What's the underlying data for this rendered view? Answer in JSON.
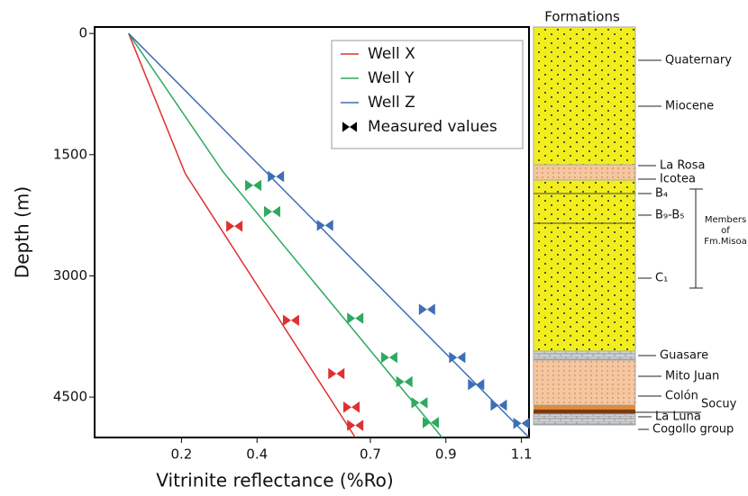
{
  "chart_data": {
    "type": "line",
    "x_label": "Vitrinite reflectance (%Ro)",
    "y_label": "Depth (m)",
    "xlim": [
      -0.03,
      1.12
    ],
    "xticks": [
      0.2,
      0.4,
      0.7,
      0.9,
      1.1
    ],
    "ylim": [
      -80,
      5000
    ],
    "yticks": [
      0,
      1500,
      3000,
      4500
    ],
    "y_inverted": true,
    "legend_position": "upper right",
    "measured_label": "Measured values",
    "measured_color": "#000000",
    "series": [
      {
        "name": "Well X",
        "color": "#e03030",
        "x": [
          0.06,
          0.21,
          0.66
        ],
        "y": [
          0,
          1735,
          5000
        ],
        "measured_x": [
          0.34,
          0.49,
          0.61,
          0.65,
          0.66
        ],
        "measured_y": [
          2385,
          3550,
          4210,
          4625,
          4850
        ]
      },
      {
        "name": "Well Y",
        "color": "#2eaa5e",
        "x": [
          0.06,
          0.31,
          0.89
        ],
        "y": [
          0,
          1713,
          5000
        ],
        "measured_x": [
          0.39,
          0.44,
          0.66,
          0.75,
          0.79,
          0.83,
          0.86
        ],
        "measured_y": [
          1880,
          2205,
          3525,
          4010,
          4310,
          4570,
          4815
        ]
      },
      {
        "name": "Well Z",
        "color": "#3d6fb5",
        "x": [
          0.06,
          1.12
        ],
        "y": [
          0,
          5000
        ],
        "measured_x": [
          0.45,
          0.58,
          0.85,
          0.93,
          0.98,
          1.04,
          1.1
        ],
        "measured_y": [
          1770,
          2375,
          3415,
          4010,
          4345,
          4600,
          4825
        ]
      }
    ],
    "formations_title": "Formations",
    "formations": [
      "Quaternary",
      "Miocene",
      "La Rosa",
      "Icotea",
      "B₄",
      "B₉-B₅",
      "C₁",
      "Guasare",
      "Mito Juan",
      "Colón",
      "Socuy",
      "La Luna",
      "Cogollo group"
    ],
    "members_label": [
      "Members",
      "of",
      "Fm.Misoa"
    ]
  }
}
